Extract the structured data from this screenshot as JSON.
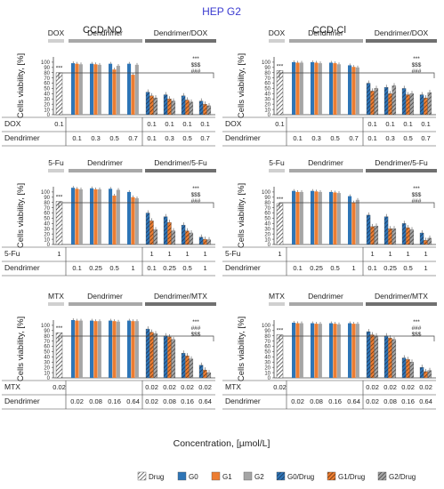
{
  "figure": {
    "title": "HEP G2",
    "title_color": "#3a3ad0",
    "y_label": "Cells viability, [%]",
    "x_label": "Concentration, [µmol/L]",
    "columns": [
      "CCD-NO",
      "CCD-Cl"
    ],
    "y_ticks": [
      "0",
      "10",
      "20",
      "30",
      "40",
      "50",
      "60",
      "70",
      "80",
      "90",
      "100"
    ],
    "row_label_dendrimer": "Dendrimer"
  },
  "legend": [
    {
      "label": "Drug",
      "color": "#ffffff",
      "hatch": true
    },
    {
      "label": "G0",
      "color": "#2e75b6",
      "hatch": false
    },
    {
      "label": "G1",
      "color": "#ed7d31",
      "hatch": false
    },
    {
      "label": "G2",
      "color": "#a5a5a5",
      "hatch": false
    },
    {
      "label": "G0/Drug",
      "color": "#2e75b6",
      "hatch": true
    },
    {
      "label": "G1/Drug",
      "color": "#ed7d31",
      "hatch": true
    },
    {
      "label": "G2/Drug",
      "color": "#a5a5a5",
      "hatch": true
    }
  ],
  "chart_data": [
    {
      "type": "bar",
      "cell": "CCD-NO",
      "drug": "DOX",
      "combo_label": "Dendrimer/DOX",
      "ylim": [
        0,
        110
      ],
      "drug_conc": "0.1",
      "den_conc": [
        "0.1",
        "0.3",
        "0.5",
        "0.7"
      ],
      "combo_drug": [
        "0.1",
        "0.1",
        "0.1",
        "0.1"
      ],
      "combo_den": [
        "0.1",
        "0.3",
        "0.5",
        "0.7"
      ],
      "drug_value": 80,
      "dendrimer": {
        "G0": [
          98,
          97,
          97,
          97
        ],
        "G1": [
          97,
          96,
          86,
          76
        ],
        "G2": [
          96,
          95,
          93,
          95
        ]
      },
      "combo": {
        "G0/Drug": [
          43,
          38,
          36,
          26
        ],
        "G1/Drug": [
          36,
          30,
          28,
          20
        ],
        "G2/Drug": [
          32,
          26,
          24,
          17
        ]
      },
      "annotations": [
        "***",
        "$$$",
        "###"
      ]
    },
    {
      "type": "bar",
      "cell": "CCD-Cl",
      "drug": "DOX",
      "combo_label": "Dendrimer/DOX",
      "ylim": [
        0,
        110
      ],
      "drug_conc": "0.1",
      "den_conc": [
        "0.1",
        "0.3",
        "0.5",
        "0.7"
      ],
      "combo_drug": [
        "0.1",
        "0.1",
        "0.1",
        "0.1"
      ],
      "combo_den": [
        "0.1",
        "0.3",
        "0.5",
        "0.7"
      ],
      "drug_value": 84,
      "dendrimer": {
        "G0": [
          100,
          100,
          99,
          94
        ],
        "G1": [
          99,
          99,
          98,
          91
        ],
        "G2": [
          99,
          98,
          96,
          90
        ]
      },
      "combo": {
        "G0/Drug": [
          60,
          52,
          50,
          38
        ],
        "G1/Drug": [
          45,
          40,
          38,
          32
        ],
        "G2/Drug": [
          50,
          55,
          40,
          42
        ]
      },
      "annotations": [
        "***",
        "$$$",
        "###"
      ]
    },
    {
      "type": "bar",
      "cell": "CCD-NO",
      "drug": "5-Fu",
      "combo_label": "Dendrimer/5-Fu",
      "ylim": [
        0,
        110
      ],
      "drug_conc": "1",
      "den_conc": [
        "0.1",
        "0.25",
        "0.5",
        "1"
      ],
      "combo_drug": [
        "1",
        "1",
        "1",
        "1"
      ],
      "combo_den": [
        "0.1",
        "0.25",
        "0.5",
        "1"
      ],
      "drug_value": 82,
      "dendrimer": {
        "G0": [
          108,
          107,
          106,
          100
        ],
        "G1": [
          106,
          105,
          93,
          90
        ],
        "G2": [
          105,
          105,
          104,
          88
        ]
      },
      "combo": {
        "G0/Drug": [
          60,
          53,
          37,
          14
        ],
        "G1/Drug": [
          45,
          42,
          26,
          10
        ],
        "G2/Drug": [
          28,
          26,
          22,
          9
        ]
      },
      "annotations": [
        "***",
        "$$$",
        "###"
      ]
    },
    {
      "type": "bar",
      "cell": "CCD-Cl",
      "drug": "5-Fu",
      "combo_label": "Dendrimer/5-Fu",
      "ylim": [
        0,
        110
      ],
      "drug_conc": "1",
      "den_conc": [
        "0.1",
        "0.25",
        "0.5",
        "1"
      ],
      "combo_drug": [
        "1",
        "1",
        "1",
        "1"
      ],
      "combo_den": [
        "0.1",
        "0.25",
        "0.5",
        "1"
      ],
      "drug_value": 78,
      "dendrimer": {
        "G0": [
          102,
          102,
          100,
          92
        ],
        "G1": [
          100,
          101,
          99,
          80
        ],
        "G2": [
          100,
          100,
          98,
          85
        ]
      },
      "combo": {
        "G0/Drug": [
          56,
          53,
          40,
          22
        ],
        "G1/Drug": [
          34,
          30,
          32,
          8
        ],
        "G2/Drug": [
          35,
          30,
          28,
          12
        ]
      },
      "annotations": [
        "***",
        "$$$",
        "###"
      ]
    },
    {
      "type": "bar",
      "cell": "CCD-NO",
      "drug": "MTX",
      "combo_label": "Dendrimer/MTX",
      "ylim": [
        0,
        110
      ],
      "drug_conc": "0.02",
      "den_conc": [
        "0.02",
        "0.08",
        "0.16",
        "0.64"
      ],
      "combo_drug": [
        "0.02",
        "0.02",
        "0.02",
        "0.02"
      ],
      "combo_den": [
        "0.02",
        "0.08",
        "0.16",
        "0.64"
      ],
      "drug_value": 86,
      "dendrimer": {
        "G0": [
          110,
          109,
          109,
          109
        ],
        "G1": [
          109,
          108,
          108,
          108
        ],
        "G2": [
          109,
          108,
          107,
          108
        ]
      },
      "combo": {
        "G0/Drug": [
          93,
          80,
          47,
          24
        ],
        "G1/Drug": [
          87,
          78,
          42,
          15
        ],
        "G2/Drug": [
          84,
          73,
          36,
          10
        ]
      },
      "annotations": [
        "***",
        "###",
        "$$$"
      ]
    },
    {
      "type": "bar",
      "cell": "CCD-Cl",
      "drug": "MTX",
      "combo_label": "Dendrimer/MTX",
      "ylim": [
        0,
        110
      ],
      "drug_conc": "0.02",
      "den_conc": [
        "0.02",
        "0.08",
        "0.16",
        "0.64"
      ],
      "combo_drug": [
        "0.02",
        "0.02",
        "0.02",
        "0.02"
      ],
      "combo_den": [
        "0.02",
        "0.08",
        "0.16",
        "0.64"
      ],
      "drug_value": 82,
      "dendrimer": {
        "G0": [
          105,
          104,
          104,
          104
        ],
        "G1": [
          104,
          103,
          103,
          103
        ],
        "G2": [
          104,
          103,
          102,
          103
        ]
      },
      "combo": {
        "G0/Drug": [
          88,
          80,
          38,
          20
        ],
        "G1/Drug": [
          82,
          76,
          35,
          12
        ],
        "G2/Drug": [
          80,
          73,
          30,
          14
        ]
      },
      "annotations": [
        "***",
        "###",
        "$$$"
      ]
    }
  ]
}
